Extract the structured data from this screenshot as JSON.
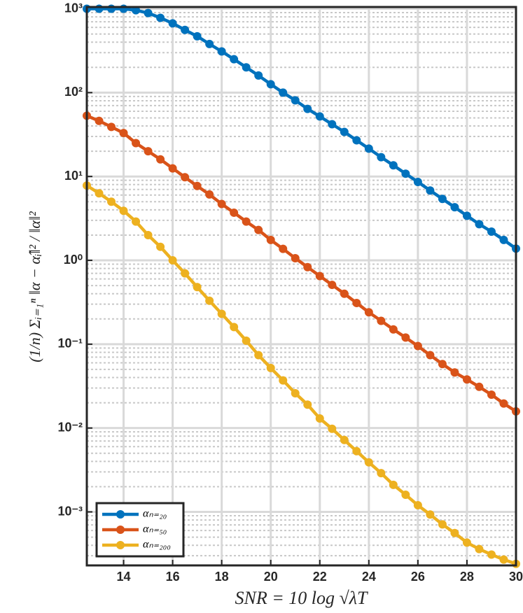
{
  "chart_data": {
    "type": "line",
    "log_y": true,
    "grid": true,
    "minor_grid": true,
    "legend": "lower left",
    "x_label": "SNR = 10 log √λT",
    "y_label": "(1/n) Σᵢ₌₁ⁿ ‖α − α̂ᵢ‖² / ‖α‖²",
    "x": [
      12.5,
      13,
      13.5,
      14,
      14.5,
      15,
      15.5,
      16,
      16.5,
      17,
      17.5,
      18,
      18.5,
      19,
      19.5,
      20,
      20.5,
      21,
      21.5,
      22,
      22.5,
      23,
      23.5,
      24,
      24.5,
      25,
      25.5,
      26,
      26.5,
      27,
      27.5,
      28,
      28.5,
      29,
      29.5,
      30
    ],
    "series": [
      {
        "name": "αₙ₌₂₀",
        "color": "#0072BD",
        "values": [
          1000,
          1000,
          1000,
          1000,
          960,
          890,
          780,
          670,
          560,
          470,
          380,
          310,
          250,
          200,
          160,
          126,
          100,
          81,
          64,
          52,
          42,
          34,
          27,
          21.5,
          17,
          13.6,
          10.8,
          8.6,
          6.8,
          5.4,
          4.3,
          3.4,
          2.7,
          2.2,
          1.75,
          1.38
        ]
      },
      {
        "name": "αₙ₌₅₀",
        "color": "#D95319",
        "values": [
          53,
          46,
          39,
          33,
          25,
          20,
          16,
          12.5,
          9.8,
          7.7,
          6.1,
          4.7,
          3.7,
          2.9,
          2.3,
          1.75,
          1.37,
          1.06,
          0.83,
          0.65,
          0.51,
          0.4,
          0.31,
          0.24,
          0.19,
          0.15,
          0.12,
          0.095,
          0.074,
          0.058,
          0.046,
          0.038,
          0.031,
          0.025,
          0.0196,
          0.0158
        ]
      },
      {
        "name": "αₙ₌₂₀₀",
        "color": "#EDB120",
        "values": [
          7.8,
          6.3,
          5.0,
          3.9,
          2.9,
          2.0,
          1.45,
          1.0,
          0.7,
          0.48,
          0.33,
          0.23,
          0.16,
          0.11,
          0.074,
          0.052,
          0.037,
          0.026,
          0.019,
          0.013,
          0.0098,
          0.0072,
          0.0053,
          0.0039,
          0.0029,
          0.0021,
          0.0016,
          0.0012,
          0.00093,
          0.00071,
          0.00056,
          0.00043,
          0.00036,
          0.00031,
          0.00027,
          0.00024
        ]
      }
    ],
    "xlim": [
      12.5,
      30
    ],
    "xticks": [
      14,
      16,
      18,
      20,
      22,
      24,
      26,
      28,
      30
    ],
    "ylim": [
      0.00023,
      1050
    ],
    "yticks": [
      {
        "value": 0.001,
        "label": "10⁻³"
      },
      {
        "value": 0.01,
        "label": "10⁻²"
      },
      {
        "value": 0.1,
        "label": "10⁻¹"
      },
      {
        "value": 1,
        "label": "10⁰"
      },
      {
        "value": 10,
        "label": "10¹"
      },
      {
        "value": 100,
        "label": "10²"
      },
      {
        "value": 1000,
        "label": "10³"
      }
    ]
  }
}
